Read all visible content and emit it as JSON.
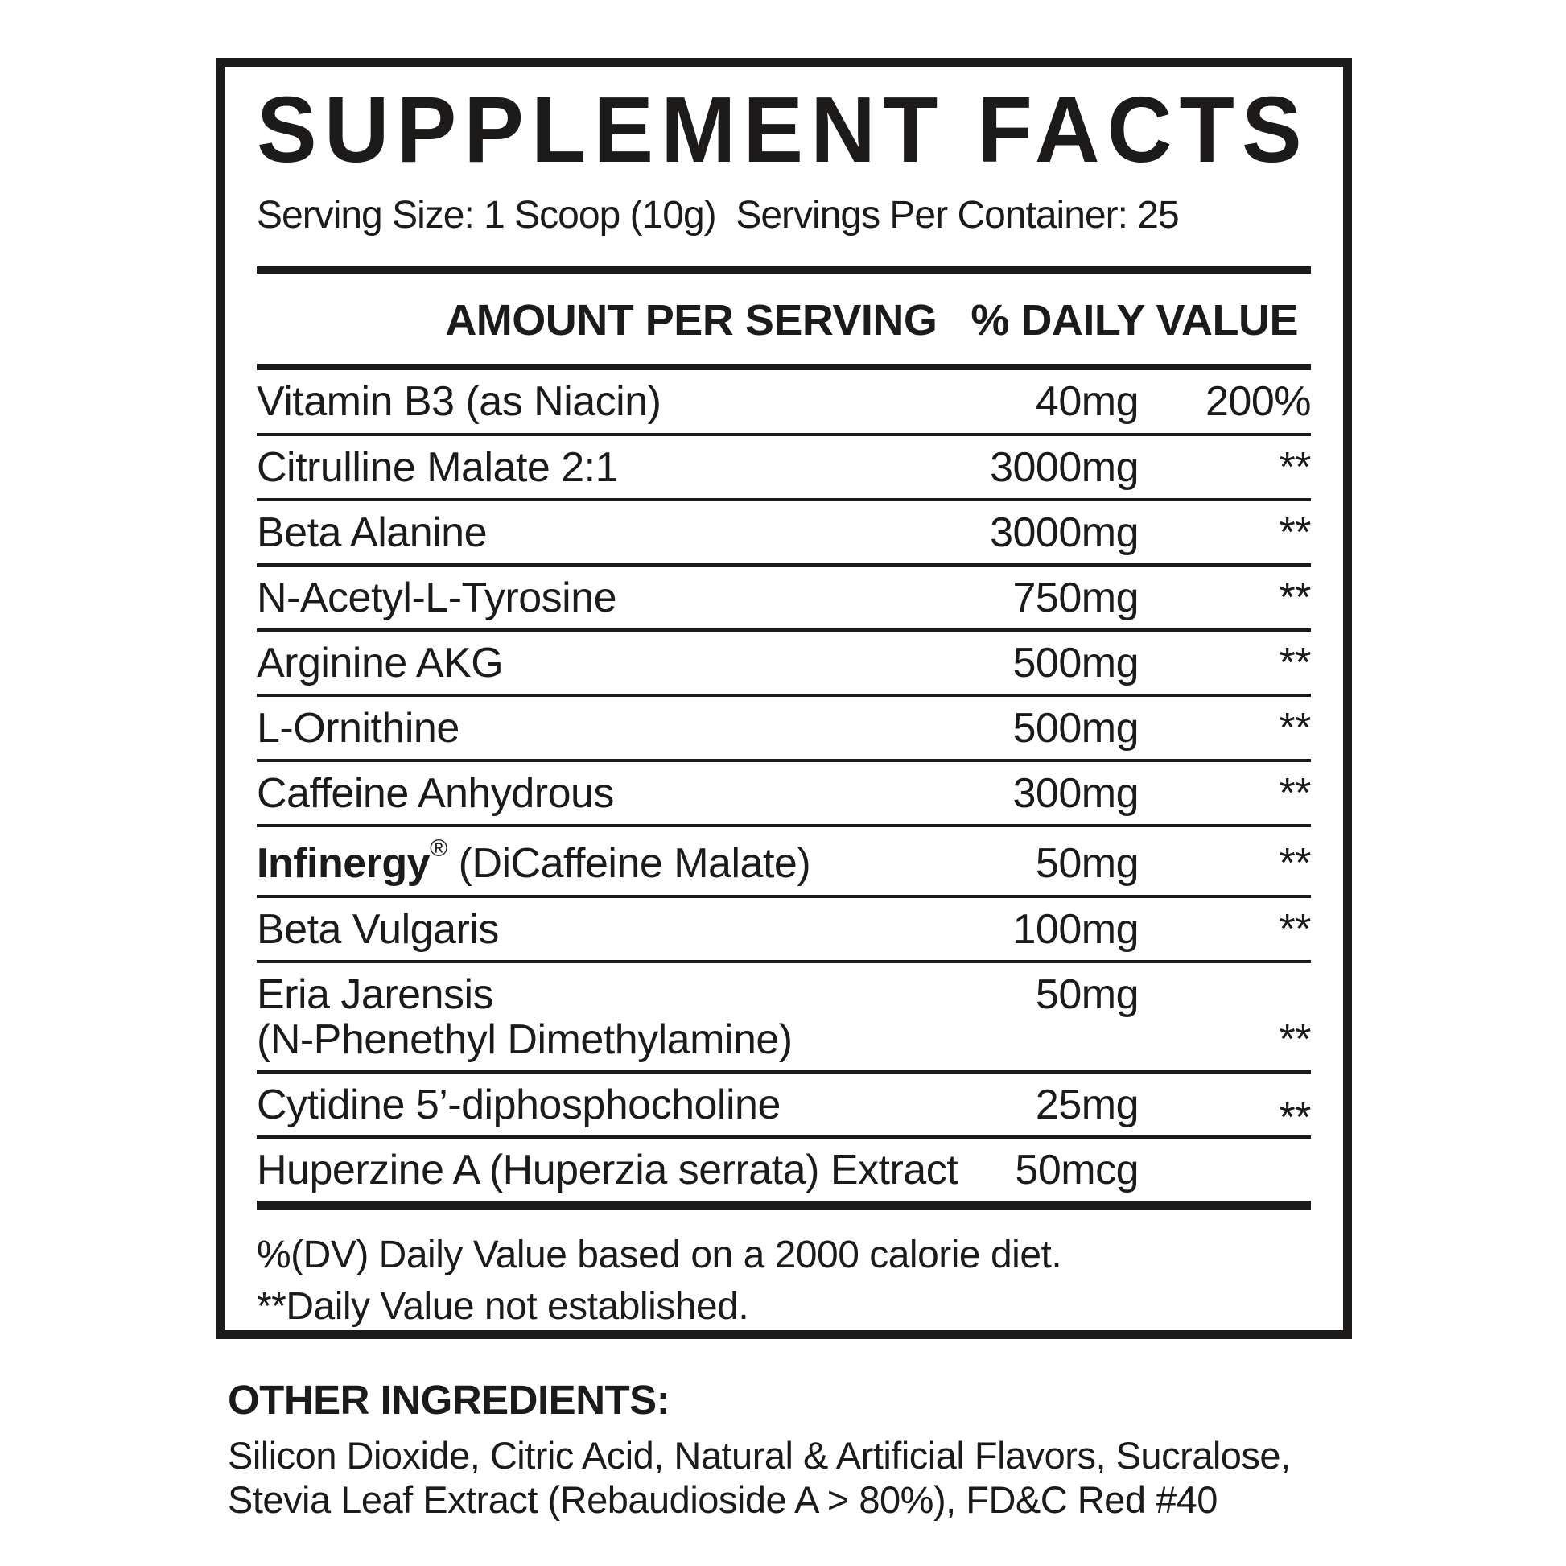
{
  "colors": {
    "ink": "#1d1b1a",
    "background": "#ffffff"
  },
  "label": {
    "title": "SUPPLEMENT FACTS",
    "serving_line": "Serving Size: 1 Scoop (10g)  Servings Per Container: 25",
    "columns": {
      "amount": "AMOUNT PER SERVING",
      "dv": "% DAILY VALUE"
    },
    "rows": [
      {
        "name": "Vitamin B3 (as Niacin)",
        "amount": "40mg",
        "dv": "200%",
        "dv_pos": "baseline"
      },
      {
        "name": "Citrulline Malate 2:1",
        "amount": "3000mg",
        "dv": "**",
        "dv_pos": "baseline"
      },
      {
        "name": "Beta Alanine",
        "amount": "3000mg",
        "dv": "**",
        "dv_pos": "baseline"
      },
      {
        "name": "N-Acetyl-L-Tyrosine",
        "amount": "750mg",
        "dv": "**",
        "dv_pos": "baseline"
      },
      {
        "name": "Arginine AKG",
        "amount": "500mg",
        "dv": "**",
        "dv_pos": "baseline"
      },
      {
        "name": "L-Ornithine",
        "amount": "500mg",
        "dv": "**",
        "dv_pos": "baseline"
      },
      {
        "name": "Caffeine Anhydrous",
        "amount": "300mg",
        "dv": "**",
        "dv_pos": "baseline"
      },
      {
        "name": "Infinergy",
        "name_bold": true,
        "name_sup": "®",
        "name_rest": " (DiCaffeine Malate)",
        "amount": "50mg",
        "dv": "**",
        "dv_pos": "baseline"
      },
      {
        "name": "Beta Vulgaris",
        "amount": "100mg",
        "dv": "**",
        "dv_pos": "baseline"
      },
      {
        "name": "Eria Jarensis",
        "name_line2": "(N-Phenethyl Dimethylamine)",
        "amount": "50mg",
        "dv": "**",
        "dv_pos": "bottom"
      },
      {
        "name": "Cytidine 5’-diphosphocholine",
        "amount": "25mg",
        "dv": "**",
        "dv_pos": "low"
      },
      {
        "name": "Huperzine A (Huperzia serrata) Extract",
        "amount": "50mcg",
        "dv": "",
        "dv_pos": "baseline"
      }
    ],
    "footnotes": [
      "%(DV) Daily Value based on a 2000 calorie diet.",
      "**Daily Value not established."
    ]
  },
  "other_ingredients": {
    "heading": "OTHER INGREDIENTS:",
    "lines": [
      "Silicon Dioxide, Citric Acid, Natural & Artificial Flavors, Sucralose,",
      "Stevia Leaf Extract (Rebaudioside A > 80%), FD&C Red #40"
    ]
  }
}
